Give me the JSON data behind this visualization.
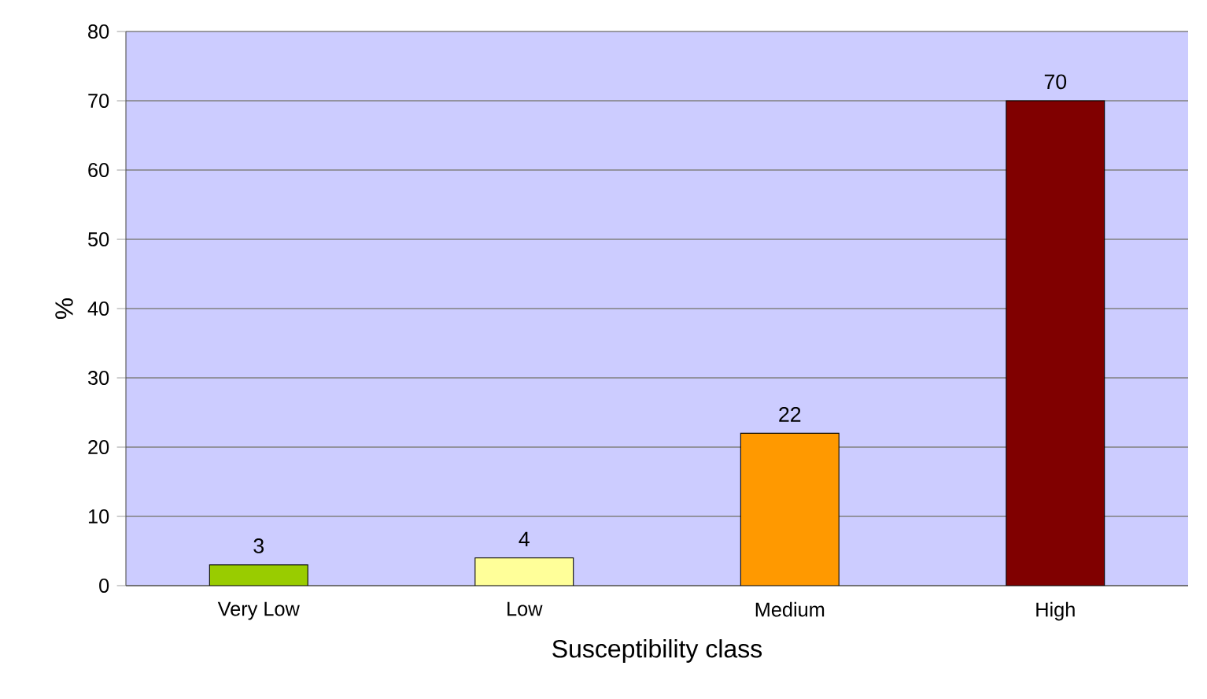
{
  "chart_data": {
    "type": "bar",
    "xlabel": "Susceptibility class",
    "ylabel": "%",
    "categories": [
      "Very Low",
      "Low",
      "Medium",
      "High"
    ],
    "values": [
      3,
      4,
      22,
      70
    ],
    "colors": [
      "#99cc00",
      "#ffff99",
      "#ff9900",
      "#800000"
    ],
    "ylim": [
      0,
      80
    ],
    "yticks": [
      0,
      10,
      20,
      30,
      40,
      50,
      60,
      70,
      80
    ],
    "grid": "y",
    "data_labels": true
  }
}
